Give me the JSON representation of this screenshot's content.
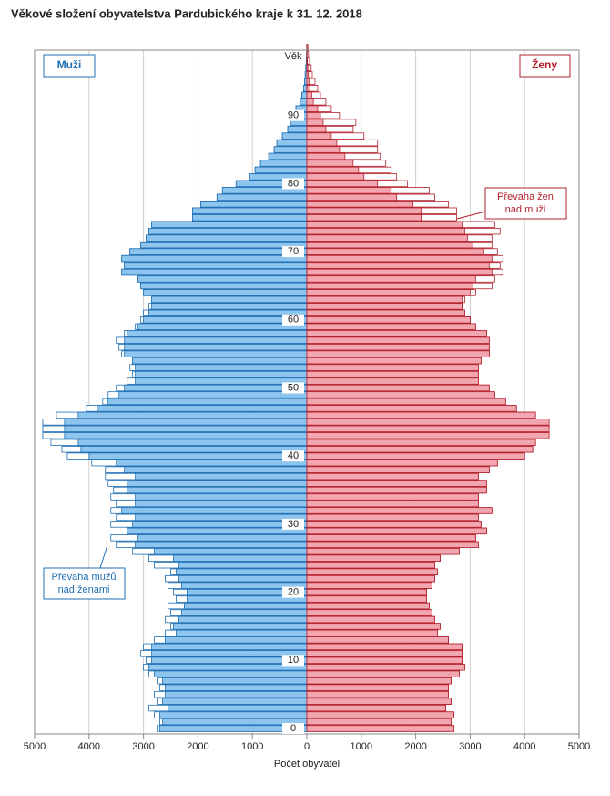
{
  "chart_data": {
    "type": "population-pyramid",
    "title": "Věkové složení obyvatelstva Pardubického kraje k 31. 12. 2018",
    "x_label": "Počet obyvatel",
    "y_label": "Věk",
    "categories": [
      "0",
      null,
      null,
      null,
      null,
      null,
      null,
      null,
      null,
      null,
      "10",
      null,
      null,
      null,
      null,
      null,
      null,
      null,
      null,
      null,
      "20",
      null,
      null,
      null,
      null,
      null,
      null,
      null,
      null,
      null,
      "30",
      null,
      null,
      null,
      null,
      null,
      null,
      null,
      null,
      null,
      "40",
      null,
      null,
      null,
      null,
      null,
      null,
      null,
      null,
      null,
      "50",
      null,
      null,
      null,
      null,
      null,
      null,
      null,
      null,
      null,
      "60",
      null,
      null,
      null,
      null,
      null,
      null,
      null,
      null,
      null,
      "70",
      null,
      null,
      null,
      null,
      null,
      null,
      null,
      null,
      null,
      "80",
      null,
      null,
      null,
      null,
      null,
      null,
      null,
      null,
      null,
      "90",
      null,
      null,
      null,
      null,
      null,
      null,
      null,
      null,
      null,
      null
    ],
    "series": [
      {
        "name": "Muži",
        "color": "#8ec5ee",
        "stroke": "#1f6fb3",
        "values": [
          2750,
          2700,
          2800,
          2900,
          2750,
          2800,
          2700,
          2750,
          2900,
          3000,
          2950,
          3050,
          3000,
          2800,
          2600,
          2500,
          2600,
          2500,
          2550,
          2400,
          2450,
          2550,
          2600,
          2500,
          2800,
          2900,
          3200,
          3500,
          3600,
          3300,
          3600,
          3500,
          3600,
          3500,
          3600,
          3550,
          3650,
          3700,
          3700,
          3950,
          4400,
          4500,
          4700,
          4850,
          4850,
          4850,
          4600,
          4050,
          3750,
          3650,
          3500,
          3300,
          3200,
          3250,
          3200,
          3400,
          3450,
          3500,
          3350,
          3150,
          3050,
          3000,
          2900,
          2850,
          3000,
          3050,
          3100,
          3400,
          3350,
          3400,
          3250,
          3050,
          2950,
          2900,
          2850,
          2100,
          2100,
          1950,
          1650,
          1550,
          1300,
          1050,
          950,
          850,
          700,
          600,
          550,
          450,
          350,
          300,
          250,
          200,
          120,
          90,
          60,
          40,
          30,
          20,
          10,
          5,
          3
        ]
      },
      {
        "name": "Ženy",
        "color": "#f2a7b0",
        "stroke": "#b3202c",
        "values": [
          2700,
          2650,
          2700,
          2550,
          2650,
          2600,
          2600,
          2650,
          2800,
          2900,
          2850,
          2850,
          2850,
          2600,
          2400,
          2450,
          2350,
          2300,
          2250,
          2200,
          2200,
          2300,
          2350,
          2400,
          2350,
          2450,
          2800,
          3150,
          3100,
          3300,
          3200,
          3150,
          3400,
          3150,
          3150,
          3300,
          3300,
          3150,
          3350,
          3500,
          4000,
          4150,
          4200,
          4450,
          4450,
          4450,
          4200,
          3850,
          3650,
          3450,
          3350,
          3150,
          3150,
          3150,
          3200,
          3350,
          3350,
          3350,
          3300,
          3100,
          3000,
          2900,
          2850,
          2900,
          3100,
          3400,
          3450,
          3600,
          3550,
          3600,
          3500,
          3400,
          3400,
          3550,
          3450,
          2750,
          2750,
          2600,
          2350,
          2250,
          1850,
          1650,
          1550,
          1450,
          1350,
          1300,
          1300,
          1050,
          850,
          900,
          600,
          450,
          350,
          250,
          200,
          150,
          100,
          80,
          50,
          30,
          20
        ]
      }
    ],
    "xlim": [
      0,
      5000
    ],
    "xticks": [
      0,
      1000,
      2000,
      3000,
      4000,
      5000
    ],
    "grid": true,
    "annotations": [
      {
        "text": [
          "Převaha žen",
          "nad muži"
        ]
      },
      {
        "text": [
          "Převaha mužů",
          "nad ženami"
        ]
      }
    ]
  }
}
